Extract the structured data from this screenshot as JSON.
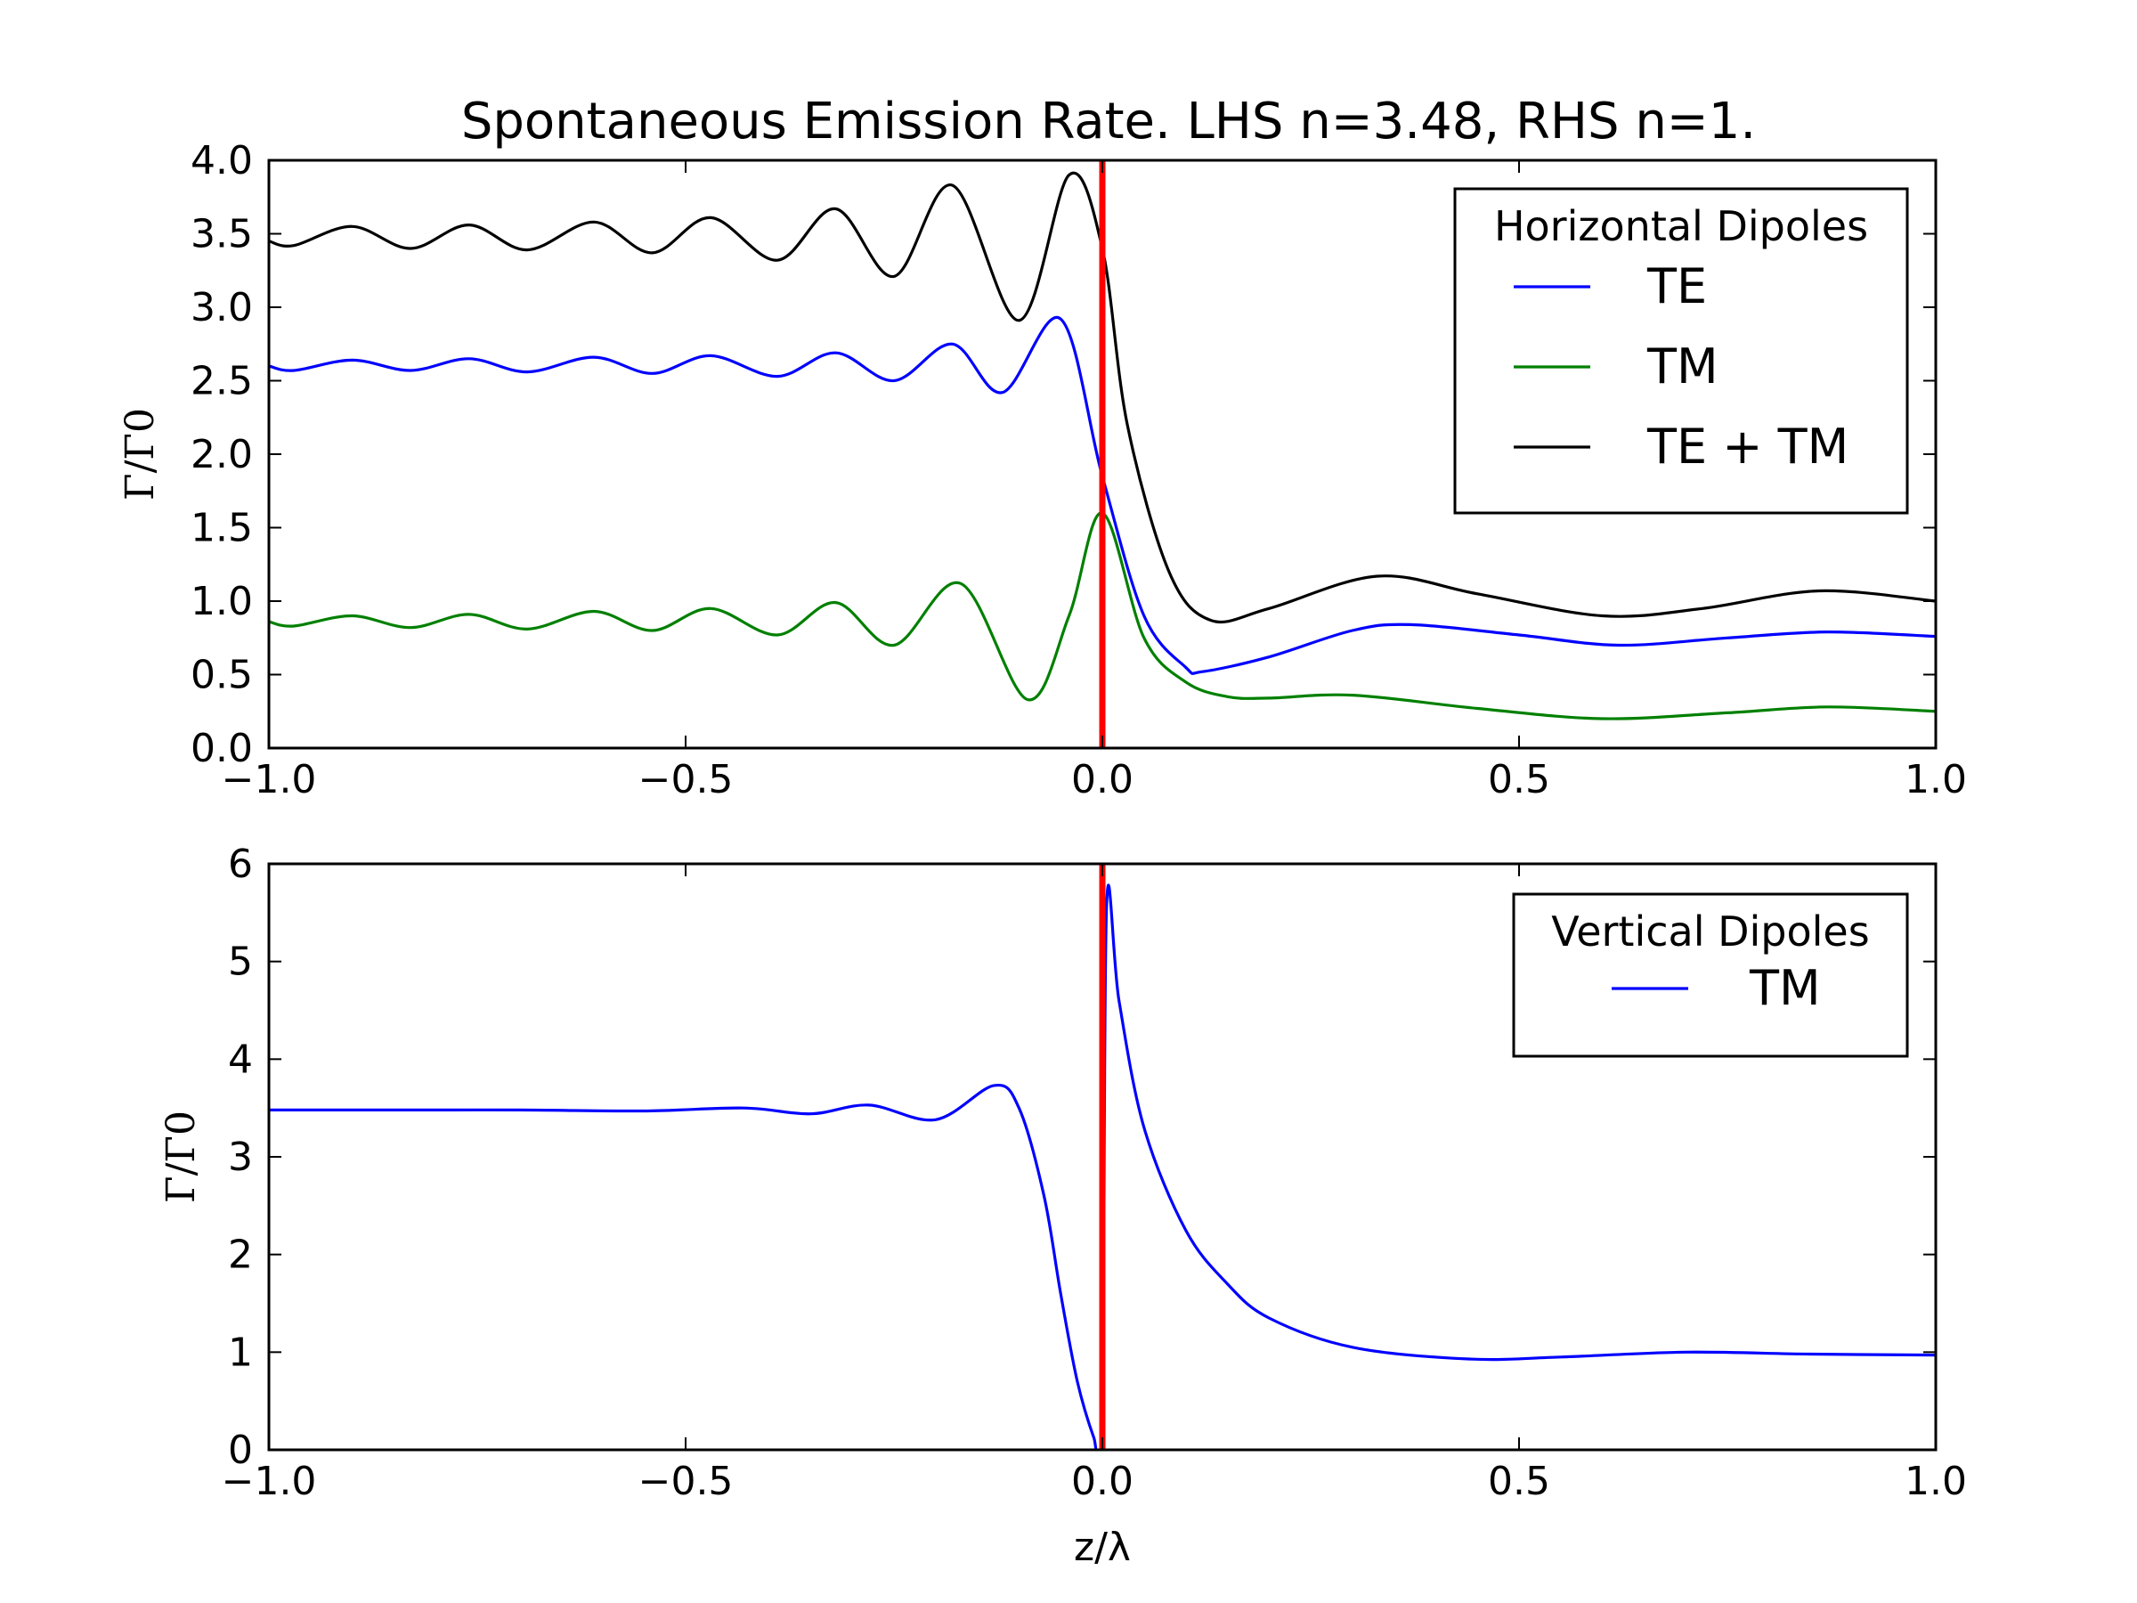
{
  "figure": {
    "title": "Spontaneous Emission Rate. LHS n=3.48, RHS n=1."
  },
  "chart_data": [
    {
      "type": "line",
      "ylabel": "Γ/Γ0",
      "xlabel": "",
      "xlim": [
        -1.0,
        1.0
      ],
      "ylim": [
        0.0,
        4.0
      ],
      "x_ticks": [
        "−1.0",
        "−0.5",
        "0.0",
        "0.5",
        "1.0"
      ],
      "y_ticks": [
        "0.0",
        "0.5",
        "1.0",
        "1.5",
        "2.0",
        "2.5",
        "3.0",
        "3.5",
        "4.0"
      ],
      "legend": {
        "title": "Horizontal Dipoles",
        "position": "upper right"
      },
      "interface_line": {
        "x": 0.0,
        "color": "#ff0000"
      },
      "series": [
        {
          "name": "TE",
          "color": "#0000ff",
          "x": [
            -1.0,
            -0.97,
            -0.9,
            -0.83,
            -0.76,
            -0.69,
            -0.61,
            -0.54,
            -0.47,
            -0.39,
            -0.32,
            -0.25,
            -0.18,
            -0.12,
            -0.05,
            0.0,
            0.05,
            0.1,
            0.12,
            0.2,
            0.3,
            0.37,
            0.5,
            0.62,
            0.75,
            0.87,
            1.0
          ],
          "y": [
            2.6,
            2.57,
            2.64,
            2.57,
            2.65,
            2.56,
            2.66,
            2.55,
            2.67,
            2.53,
            2.69,
            2.5,
            2.75,
            2.42,
            2.92,
            1.85,
            0.9,
            0.55,
            0.52,
            0.62,
            0.8,
            0.84,
            0.77,
            0.7,
            0.75,
            0.79,
            0.76
          ]
        },
        {
          "name": "TM",
          "color": "#008000",
          "x": [
            -1.0,
            -0.97,
            -0.9,
            -0.83,
            -0.76,
            -0.69,
            -0.61,
            -0.54,
            -0.47,
            -0.39,
            -0.32,
            -0.25,
            -0.17,
            -0.09,
            -0.04,
            0.0,
            0.05,
            0.1,
            0.15,
            0.2,
            0.3,
            0.45,
            0.6,
            0.75,
            0.87,
            1.0
          ],
          "y": [
            0.86,
            0.83,
            0.9,
            0.82,
            0.91,
            0.81,
            0.93,
            0.8,
            0.95,
            0.77,
            0.99,
            0.7,
            1.12,
            0.33,
            0.9,
            1.6,
            0.75,
            0.45,
            0.35,
            0.34,
            0.36,
            0.27,
            0.2,
            0.24,
            0.28,
            0.25
          ]
        },
        {
          "name": "TE + TM",
          "color": "#000000",
          "x": [
            -1.0,
            -0.97,
            -0.9,
            -0.83,
            -0.76,
            -0.69,
            -0.61,
            -0.54,
            -0.47,
            -0.39,
            -0.32,
            -0.25,
            -0.18,
            -0.1,
            -0.04,
            0.0,
            0.03,
            0.08,
            0.13,
            0.2,
            0.33,
            0.45,
            0.6,
            0.72,
            0.86,
            1.0
          ],
          "y": [
            3.45,
            3.42,
            3.55,
            3.4,
            3.56,
            3.39,
            3.58,
            3.37,
            3.61,
            3.32,
            3.67,
            3.21,
            3.83,
            2.91,
            3.9,
            3.4,
            2.2,
            1.2,
            0.87,
            0.95,
            1.17,
            1.05,
            0.9,
            0.95,
            1.07,
            1.0
          ]
        }
      ]
    },
    {
      "type": "line",
      "ylabel": "Γ/Γ0",
      "xlabel": "z/λ",
      "xlim": [
        -1.0,
        1.0
      ],
      "ylim": [
        0,
        6
      ],
      "x_ticks": [
        "−1.0",
        "−0.5",
        "0.0",
        "0.5",
        "1.0"
      ],
      "y_ticks": [
        "0",
        "1",
        "2",
        "3",
        "4",
        "5",
        "6"
      ],
      "legend": {
        "title": "Vertical Dipoles",
        "position": "upper right"
      },
      "interface_line": {
        "x": 0.0,
        "color": "#ff0000"
      },
      "series": [
        {
          "name": "TM",
          "color": "#0000ff",
          "x": [
            -1.0,
            -0.85,
            -0.7,
            -0.55,
            -0.43,
            -0.35,
            -0.28,
            -0.2,
            -0.13,
            -0.1,
            -0.07,
            -0.05,
            -0.03,
            -0.01,
            0.0,
            0.005,
            0.02,
            0.05,
            0.1,
            0.15,
            0.2,
            0.3,
            0.44,
            0.55,
            0.7,
            0.85,
            1.0
          ],
          "y": [
            3.48,
            3.48,
            3.48,
            3.47,
            3.5,
            3.44,
            3.53,
            3.38,
            3.73,
            3.5,
            2.6,
            1.6,
            0.7,
            0.12,
            0.0,
            5.55,
            4.6,
            3.3,
            2.25,
            1.7,
            1.35,
            1.05,
            0.93,
            0.95,
            1.0,
            0.98,
            0.97
          ]
        }
      ]
    }
  ]
}
